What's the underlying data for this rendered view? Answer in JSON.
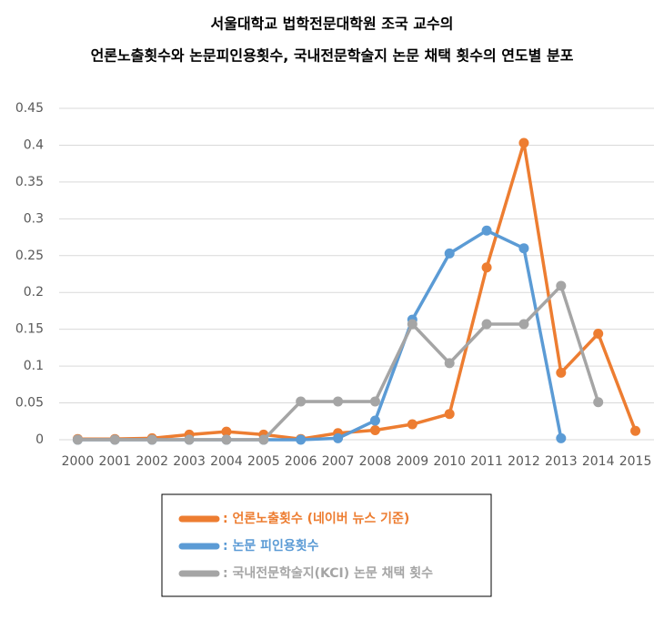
{
  "chart_data": {
    "type": "line",
    "title": "서울대학교 법학전문대학원 조국 교수의",
    "subtitle": "언론노출횟수와 논문피인용횟수, 국내전문학술지 논문 채택 횟수의 연도별 분포",
    "categories": [
      "2000",
      "2001",
      "2002",
      "2003",
      "2004",
      "2005",
      "2006",
      "2007",
      "2008",
      "2009",
      "2010",
      "2011",
      "2012",
      "2013",
      "2014",
      "2015"
    ],
    "series": [
      {
        "name": ": 언론노출횟수 (네이버 뉴스 기준)",
        "color": "#ed7d31",
        "values": [
          0.001,
          0.001,
          0.002,
          0.007,
          0.011,
          0.007,
          0.001,
          0.009,
          0.013,
          0.021,
          0.035,
          0.234,
          0.403,
          0.091,
          0.144,
          0.012
        ]
      },
      {
        "name": ": 논문 피인용횟수",
        "color": "#5b9bd5",
        "values": [
          0,
          0,
          0,
          0,
          0,
          0,
          0,
          0.002,
          0.026,
          0.163,
          0.253,
          0.284,
          0.26,
          0.002,
          null,
          null
        ]
      },
      {
        "name": ": 국내전문학술지(KCI) 논문 채택 횟수",
        "color": "#a5a5a5",
        "values": [
          0,
          0,
          0,
          0,
          0,
          0,
          0.052,
          0.052,
          0.052,
          0.157,
          0.104,
          0.157,
          0.157,
          0.209,
          0.051,
          null
        ]
      }
    ],
    "ylim": [
      0,
      0.45
    ],
    "yticks": [
      0,
      0.05,
      0.1,
      0.15,
      0.2,
      0.25,
      0.3,
      0.35,
      0.4,
      0.45
    ],
    "grid": true
  }
}
